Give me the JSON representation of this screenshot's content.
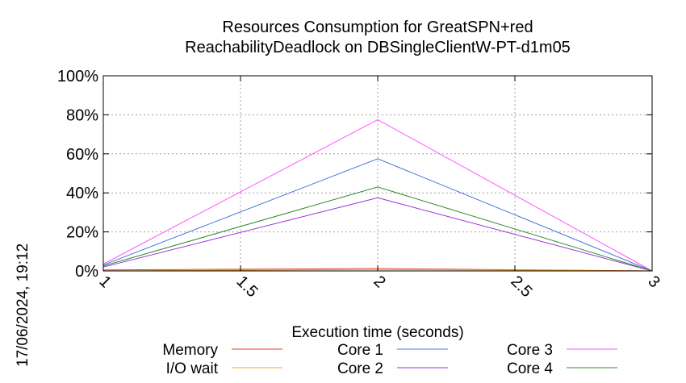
{
  "timestamp": "17/06/2024, 19:12",
  "chart_data": {
    "type": "line",
    "title_line1": "Resources Consumption for GreatSPN+red",
    "title_line2": "ReachabilityDeadlock on DBSingleClientW-PT-d1m05",
    "xlabel": "Execution time (seconds)",
    "ylabel": "",
    "xlim": [
      1,
      3
    ],
    "ylim": [
      0,
      100
    ],
    "x_ticks": [
      {
        "value": 1,
        "label": "1"
      },
      {
        "value": 1.5,
        "label": "1.5"
      },
      {
        "value": 2,
        "label": "2"
      },
      {
        "value": 2.5,
        "label": "2.5"
      },
      {
        "value": 3,
        "label": "3"
      }
    ],
    "y_ticks": [
      {
        "value": 0,
        "label": "0%"
      },
      {
        "value": 20,
        "label": "20%"
      },
      {
        "value": 40,
        "label": "40%"
      },
      {
        "value": 60,
        "label": "60%"
      },
      {
        "value": 80,
        "label": "80%"
      },
      {
        "value": 100,
        "label": "100%"
      }
    ],
    "grid": true,
    "legend_position": "bottom",
    "x": [
      1,
      2,
      3
    ],
    "series": [
      {
        "name": "Memory",
        "color": "#e8412b",
        "values": [
          0.5,
          1.2,
          0
        ]
      },
      {
        "name": "I/O wait",
        "color": "#f5a623",
        "values": [
          0,
          0.8,
          0
        ]
      },
      {
        "name": "Core 1",
        "color": "#4a74d9",
        "values": [
          3,
          57.5,
          0
        ]
      },
      {
        "name": "Core 2",
        "color": "#9b30d9",
        "values": [
          2,
          37.5,
          0
        ]
      },
      {
        "name": "Core 3",
        "color": "#ff55ff",
        "values": [
          3.5,
          77.5,
          0
        ]
      },
      {
        "name": "Core 4",
        "color": "#2e8b2e",
        "values": [
          2.5,
          43,
          0
        ]
      }
    ]
  }
}
